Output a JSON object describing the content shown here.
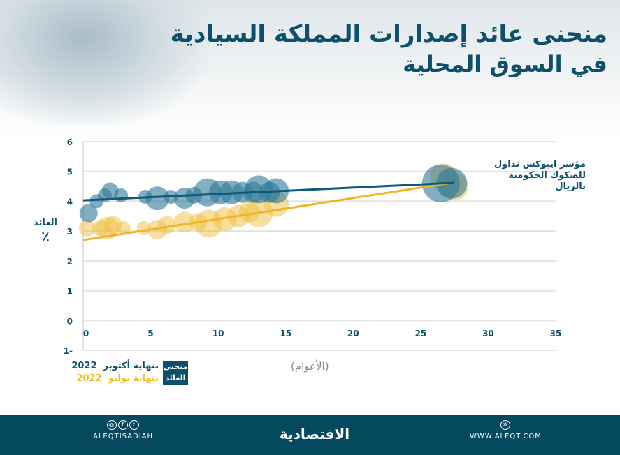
{
  "title": {
    "line1": "منحنى عائد إصدارات المملكة السيادية",
    "line2": "في السوق المحلية"
  },
  "colors": {
    "primary": "#0e4f6a",
    "blue_bubble": "#2e7898",
    "yellow": "#f0c040",
    "footer": "#04495e"
  },
  "chart_data": {
    "type": "scatter",
    "xlabel": "(الأعوام)",
    "ylabel": "العائد",
    "ylabel_unit": "٪",
    "xlim": [
      0,
      35
    ],
    "ylim": [
      -1,
      6
    ],
    "xticks": [
      "0",
      "5",
      "10",
      "15",
      "20",
      "25",
      "30",
      "35"
    ],
    "yticks": [
      "1-",
      "0",
      "1",
      "2",
      "3",
      "4",
      "5",
      "6"
    ],
    "grid": true,
    "annotation": {
      "line1": "مؤشر ايبوكس تداول",
      "line2": "للصكوك الحكومية بالريال"
    },
    "legend": {
      "box": [
        "منحنى",
        "العائد"
      ],
      "placement": "bottom-left"
    },
    "series": [
      {
        "name": "بنهاية أكتوبر 2022",
        "label_text": "بنهاية أكتوبر",
        "label_year": "2022",
        "color": "#2e7898",
        "line_color": "#0e5a7a",
        "points": [
          [
            0.4,
            3.6,
            13
          ],
          [
            1,
            4.0,
            10
          ],
          [
            1.6,
            4.2,
            10
          ],
          [
            2,
            4.35,
            12
          ],
          [
            2.8,
            4.2,
            10
          ],
          [
            4.6,
            4.15,
            10
          ],
          [
            5.5,
            4.1,
            17
          ],
          [
            6.5,
            4.15,
            10
          ],
          [
            7.5,
            4.1,
            15
          ],
          [
            8.2,
            4.2,
            12
          ],
          [
            9.2,
            4.3,
            20
          ],
          [
            10.2,
            4.3,
            17
          ],
          [
            11,
            4.3,
            17
          ],
          [
            11.8,
            4.3,
            15
          ],
          [
            12.6,
            4.3,
            15
          ],
          [
            13,
            4.4,
            20
          ],
          [
            13.8,
            4.3,
            15
          ],
          [
            14.3,
            4.35,
            18
          ],
          [
            26.5,
            4.6,
            27
          ],
          [
            27.3,
            4.6,
            22
          ]
        ],
        "trend": [
          [
            0,
            4.03
          ],
          [
            27.5,
            4.62
          ]
        ]
      },
      {
        "name": "بنهاية يوليو 2022",
        "label_text": "بنهاية يوليو",
        "label_year": "2022",
        "color": "#f0c040",
        "line_color": "#f0b428",
        "points": [
          [
            0.3,
            3.1,
            12
          ],
          [
            1.3,
            3.1,
            12
          ],
          [
            1.8,
            3.1,
            16
          ],
          [
            2.2,
            3.2,
            13
          ],
          [
            3,
            3.1,
            10
          ],
          [
            4.5,
            3.1,
            10
          ],
          [
            5.5,
            3.05,
            14
          ],
          [
            6.2,
            3.2,
            13
          ],
          [
            7.5,
            3.3,
            15
          ],
          [
            8.5,
            3.3,
            13
          ],
          [
            9.3,
            3.25,
            20
          ],
          [
            10.5,
            3.4,
            17
          ],
          [
            11.5,
            3.5,
            16
          ],
          [
            12.3,
            3.65,
            15
          ],
          [
            13,
            3.6,
            20
          ],
          [
            14.3,
            3.9,
            18
          ],
          [
            26.7,
            4.8,
            20
          ],
          [
            27.5,
            4.5,
            20
          ]
        ],
        "trend": [
          [
            0,
            2.7
          ],
          [
            27,
            4.6
          ]
        ]
      }
    ]
  },
  "footer": {
    "social": "ALEQTISADIAH",
    "logo": "الاقتصادية",
    "website": "WWW.ALEQT.COM"
  }
}
